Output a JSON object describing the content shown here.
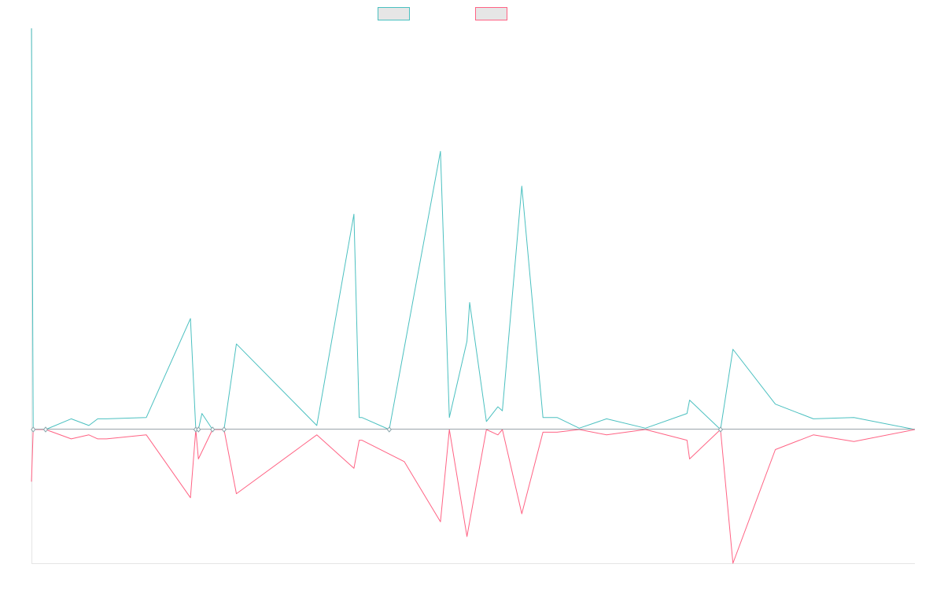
{
  "chart_data": {
    "type": "line",
    "title": "",
    "xlabel": "",
    "ylabel": "",
    "grid": false,
    "legend_position": "top-center",
    "x_range": [
      0,
      100
    ],
    "ylim": [
      -100,
      300
    ],
    "baseline_value": 0,
    "series": [
      {
        "color": "#4bc0c0",
        "fill": "#e6e6e6",
        "values": [
          [
            0,
            300
          ],
          [
            0.2,
            0
          ],
          [
            1.6,
            0
          ],
          [
            4.5,
            8
          ],
          [
            6.5,
            3
          ],
          [
            7.5,
            8
          ],
          [
            8.5,
            8
          ],
          [
            13.0,
            9
          ],
          [
            18.0,
            83
          ],
          [
            18.6,
            0
          ],
          [
            18.9,
            0
          ],
          [
            19.3,
            12
          ],
          [
            20.5,
            0
          ],
          [
            21.8,
            0
          ],
          [
            23.2,
            64
          ],
          [
            32.3,
            3
          ],
          [
            36.5,
            161
          ],
          [
            37.1,
            9
          ],
          [
            37.4,
            9
          ],
          [
            40.5,
            0
          ],
          [
            46.3,
            208
          ],
          [
            47.3,
            9
          ],
          [
            49.3,
            66
          ],
          [
            49.6,
            95
          ],
          [
            51.5,
            6
          ],
          [
            52.8,
            17
          ],
          [
            53.3,
            14
          ],
          [
            55.5,
            182
          ],
          [
            57.9,
            9
          ],
          [
            59.5,
            9
          ],
          [
            62.0,
            1
          ],
          [
            65.1,
            8
          ],
          [
            69.5,
            1
          ],
          [
            74.2,
            12
          ],
          [
            74.5,
            22
          ],
          [
            78.0,
            0
          ],
          [
            79.4,
            60
          ],
          [
            84.2,
            19
          ],
          [
            88.5,
            8
          ],
          [
            93.1,
            9
          ]
        ]
      },
      {
        "color": "#ff6384",
        "fill": "#e6e6e6",
        "values": [
          [
            0,
            -39
          ],
          [
            0.2,
            0
          ],
          [
            1.6,
            0
          ],
          [
            4.5,
            -7
          ],
          [
            6.5,
            -4
          ],
          [
            7.5,
            -7
          ],
          [
            8.5,
            -7
          ],
          [
            13.0,
            -4
          ],
          [
            18.0,
            -51
          ],
          [
            18.6,
            0
          ],
          [
            18.9,
            -22
          ],
          [
            20.5,
            0
          ],
          [
            21.8,
            0
          ],
          [
            23.2,
            -48
          ],
          [
            32.3,
            -4
          ],
          [
            36.5,
            -29
          ],
          [
            37.1,
            -8
          ],
          [
            37.4,
            -8
          ],
          [
            42.2,
            -24
          ],
          [
            46.3,
            -69
          ],
          [
            47.3,
            0
          ],
          [
            49.3,
            -80
          ],
          [
            51.5,
            0
          ],
          [
            52.8,
            -4
          ],
          [
            53.3,
            0
          ],
          [
            55.5,
            -63
          ],
          [
            57.9,
            -2
          ],
          [
            59.5,
            -2
          ],
          [
            62.0,
            0
          ],
          [
            65.1,
            -4
          ],
          [
            69.5,
            0
          ],
          [
            74.2,
            -8
          ],
          [
            74.5,
            -22
          ],
          [
            78.0,
            0
          ],
          [
            79.4,
            -100
          ],
          [
            84.2,
            -15
          ],
          [
            88.5,
            -4
          ],
          [
            93.1,
            -9
          ]
        ]
      }
    ]
  }
}
